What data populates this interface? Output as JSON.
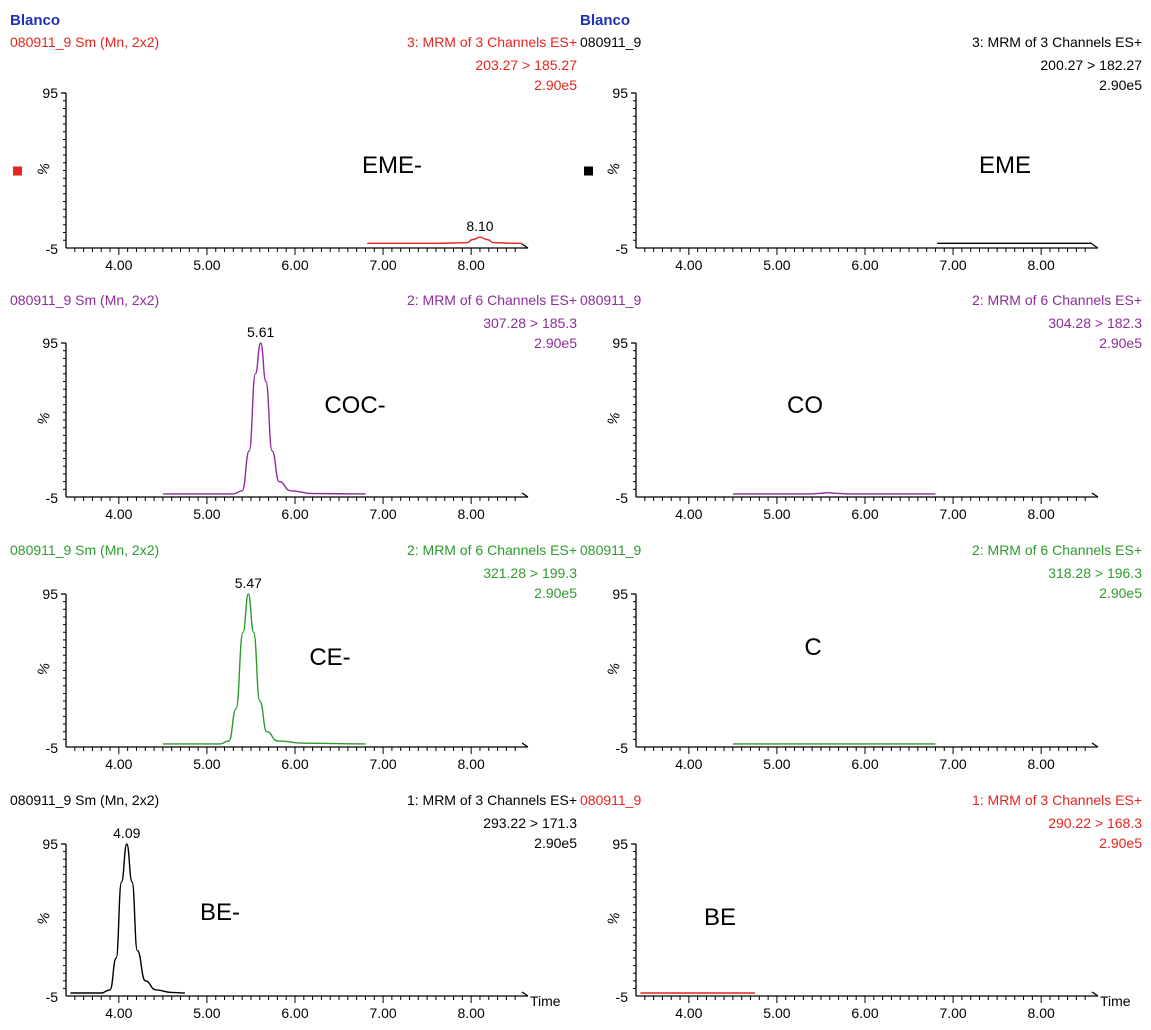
{
  "colors": {
    "red": "#e8241f",
    "purple": "#8c2e9a",
    "green": "#2f9a2f",
    "black": "#000000",
    "blue": "#1f2fb8"
  },
  "chart_data": [
    {
      "type": "line",
      "title": "Blanco",
      "sample": "080911_9 Sm (Mn, 2x2)",
      "function": "3: MRM of 3 Channels ES+",
      "transition": "203.27 > 185.27",
      "intensity": "2.90e5",
      "compound": "EME-",
      "color": "red",
      "marker": true,
      "xlim": [
        3.4,
        8.6
      ],
      "ylim": [
        -5,
        95
      ],
      "xticks": [
        "4.00",
        "5.00",
        "6.00",
        "7.00",
        "8.00"
      ],
      "yticks": [
        "95",
        "%",
        "-5"
      ],
      "xlabel": "",
      "peaks": [
        {
          "rt": 8.1,
          "label": "8.10"
        }
      ],
      "series": [
        {
          "x": [
            6.82,
            7.6,
            7.95,
            8.02,
            8.1,
            8.18,
            8.26,
            8.5,
            8.58
          ],
          "y": [
            -2,
            -2,
            -1.6,
            0.5,
            2,
            0.5,
            -1.6,
            -2,
            -2
          ]
        }
      ]
    },
    {
      "type": "line",
      "title": "Blanco",
      "sample": "080911_9",
      "function": "3: MRM of 3 Channels ES+",
      "transition": "200.27 > 182.27",
      "intensity": "2.90e5",
      "compound": "EME",
      "color": "black",
      "marker": true,
      "xlim": [
        3.4,
        8.6
      ],
      "ylim": [
        -5,
        95
      ],
      "xticks": [
        "4.00",
        "5.00",
        "6.00",
        "7.00",
        "8.00"
      ],
      "yticks": [
        "95",
        "%",
        "-5"
      ],
      "xlabel": "",
      "peaks": [],
      "series": [
        {
          "x": [
            6.82,
            8.58
          ],
          "y": [
            -2,
            -2
          ]
        }
      ]
    },
    {
      "type": "line",
      "sample": "080911_9 Sm (Mn, 2x2)",
      "function": "2: MRM of 6 Channels ES+",
      "transition": "307.28 > 185.3",
      "intensity": "2.90e5",
      "compound": "COC-",
      "color": "purple",
      "marker": false,
      "xlim": [
        3.4,
        8.6
      ],
      "ylim": [
        -5,
        95
      ],
      "xticks": [
        "4.00",
        "5.00",
        "6.00",
        "7.00",
        "8.00"
      ],
      "yticks": [
        "95",
        "%",
        "-5"
      ],
      "xlabel": "",
      "peaks": [
        {
          "rt": 5.61,
          "label": "5.61"
        }
      ],
      "series": [
        {
          "x": [
            4.5,
            5.3,
            5.4,
            5.48,
            5.55,
            5.61,
            5.67,
            5.74,
            5.82,
            5.95,
            6.2,
            6.8
          ],
          "y": [
            -3,
            -3,
            -1,
            25,
            75,
            95,
            70,
            25,
            5,
            -1,
            -2.8,
            -3
          ]
        }
      ]
    },
    {
      "type": "line",
      "sample": "080911_9",
      "function": "2: MRM of 6 Channels ES+",
      "transition": "304.28 > 182.3",
      "intensity": "2.90e5",
      "compound": "CO",
      "color": "purple",
      "marker": false,
      "xlim": [
        3.4,
        8.6
      ],
      "ylim": [
        -5,
        95
      ],
      "xticks": [
        "4.00",
        "5.00",
        "6.00",
        "7.00",
        "8.00"
      ],
      "yticks": [
        "95",
        "%",
        "-5"
      ],
      "xlabel": "",
      "peaks": [],
      "series": [
        {
          "x": [
            4.5,
            5.4,
            5.5,
            5.58,
            5.66,
            5.8,
            6.8
          ],
          "y": [
            -3,
            -3,
            -2.6,
            -2.2,
            -2.6,
            -3,
            -3
          ]
        }
      ]
    },
    {
      "type": "line",
      "sample": "080911_9 Sm (Mn, 2x2)",
      "function": "2: MRM of 6 Channels ES+",
      "transition": "321.28 > 199.3",
      "intensity": "2.90e5",
      "compound": "CE-",
      "color": "green",
      "marker": false,
      "xlim": [
        3.4,
        8.6
      ],
      "ylim": [
        -5,
        95
      ],
      "xticks": [
        "4.00",
        "5.00",
        "6.00",
        "7.00",
        "8.00"
      ],
      "yticks": [
        "95",
        "%",
        "-5"
      ],
      "xlabel": "",
      "peaks": [
        {
          "rt": 5.47,
          "label": "5.47"
        }
      ],
      "series": [
        {
          "x": [
            4.5,
            5.15,
            5.25,
            5.33,
            5.41,
            5.47,
            5.53,
            5.6,
            5.68,
            5.8,
            6.1,
            6.8
          ],
          "y": [
            -3,
            -3,
            -1,
            20,
            70,
            95,
            70,
            25,
            5,
            -1,
            -2.5,
            -3
          ]
        }
      ]
    },
    {
      "type": "line",
      "sample": "080911_9",
      "function": "2: MRM of 6 Channels ES+",
      "transition": "318.28 > 196.3",
      "intensity": "2.90e5",
      "compound": "C",
      "color": "green",
      "marker": false,
      "xlim": [
        3.4,
        8.6
      ],
      "ylim": [
        -5,
        95
      ],
      "xticks": [
        "4.00",
        "5.00",
        "6.00",
        "7.00",
        "8.00"
      ],
      "yticks": [
        "95",
        "%",
        "-5"
      ],
      "xlabel": "",
      "peaks": [],
      "series": [
        {
          "x": [
            4.5,
            6.8
          ],
          "y": [
            -3,
            -3
          ]
        }
      ]
    },
    {
      "type": "line",
      "sample": "080911_9 Sm (Mn, 2x2)",
      "function": "1: MRM of 3 Channels ES+",
      "transition": "293.22 > 171.3",
      "intensity": "2.90e5",
      "compound": "BE-",
      "color": "black",
      "headerColor": "black",
      "marker": false,
      "xlim": [
        3.4,
        8.6
      ],
      "ylim": [
        -5,
        95
      ],
      "xticks": [
        "4.00",
        "5.00",
        "6.00",
        "7.00",
        "8.00"
      ],
      "yticks": [
        "95",
        "%",
        "-5"
      ],
      "xlabel": "Time",
      "peaks": [
        {
          "rt": 4.09,
          "label": "4.09"
        }
      ],
      "series": [
        {
          "x": [
            3.45,
            3.8,
            3.9,
            3.97,
            4.03,
            4.09,
            4.15,
            4.21,
            4.3,
            4.42,
            4.6,
            4.75
          ],
          "y": [
            -3,
            -3,
            -1,
            20,
            70,
            95,
            70,
            25,
            5,
            -1,
            -2.6,
            -3
          ]
        }
      ]
    },
    {
      "type": "line",
      "sample": "080911_9",
      "function": "1: MRM of 3 Channels ES+",
      "transition": "290.22 > 168.3",
      "intensity": "2.90e5",
      "compound": "BE",
      "color": "red",
      "marker": false,
      "xlim": [
        3.4,
        8.6
      ],
      "ylim": [
        -5,
        95
      ],
      "xticks": [
        "4.00",
        "5.00",
        "6.00",
        "7.00",
        "8.00"
      ],
      "yticks": [
        "95",
        "%",
        "-5"
      ],
      "xlabel": "Time",
      "peaks": [],
      "series": [
        {
          "x": [
            3.45,
            4.75
          ],
          "y": [
            -3,
            -3
          ]
        }
      ]
    }
  ]
}
